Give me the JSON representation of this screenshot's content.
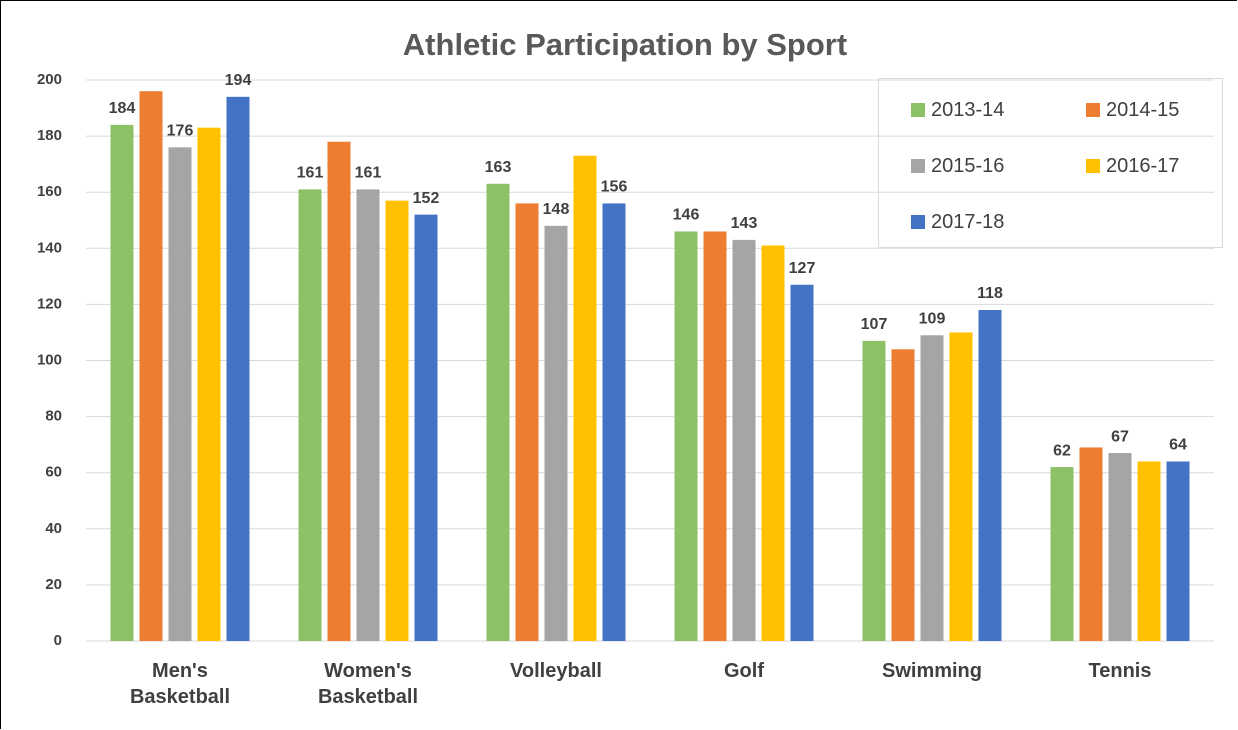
{
  "chart_data": {
    "type": "bar",
    "title": "Athletic Participation by Sport",
    "categories": [
      "Men's Basketball",
      "Women's Basketball",
      "Volleyball",
      "Golf",
      "Swimming",
      "Tennis"
    ],
    "series": [
      {
        "name": "2013-14",
        "color": "#8cc168",
        "data_labels": true,
        "values": [
          184,
          161,
          163,
          146,
          107,
          62
        ]
      },
      {
        "name": "2014-15",
        "color": "#ed7d31",
        "data_labels": false,
        "values": [
          196,
          178,
          156,
          146,
          104,
          69
        ]
      },
      {
        "name": "2015-16",
        "color": "#a5a5a5",
        "data_labels": true,
        "values": [
          176,
          161,
          148,
          143,
          109,
          67
        ]
      },
      {
        "name": "2016-17",
        "color": "#ffc000",
        "data_labels": false,
        "values": [
          183,
          157,
          173,
          141,
          110,
          64
        ]
      },
      {
        "name": "2017-18",
        "color": "#4472c4",
        "data_labels": true,
        "values": [
          194,
          152,
          156,
          127,
          118,
          64
        ]
      }
    ],
    "ylim": [
      0,
      200
    ],
    "yticks": [
      0,
      20,
      40,
      60,
      80,
      100,
      120,
      140,
      160,
      180,
      200
    ],
    "grid": true,
    "legend": "top-right"
  }
}
